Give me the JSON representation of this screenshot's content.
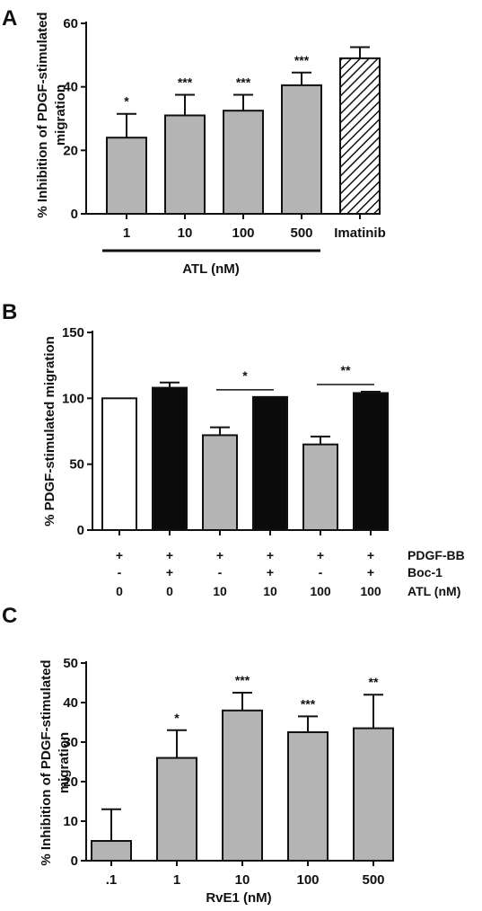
{
  "chart_data": [
    {
      "panel": "A",
      "type": "bar",
      "ylabel": "% Inhibition of PDGF-stimulated migration",
      "ylim": [
        0,
        60
      ],
      "yticks": [
        "0",
        "20",
        "40",
        "60"
      ],
      "categories": [
        "1",
        "10",
        "100",
        "500",
        "Imatinib"
      ],
      "values": [
        24,
        31,
        32.5,
        40.5,
        49
      ],
      "errors": [
        7.5,
        6.5,
        5,
        4,
        3.5
      ],
      "fills": [
        "gray",
        "gray",
        "gray",
        "gray",
        "hatch"
      ],
      "significance": [
        "*",
        "***",
        "***",
        "***",
        ""
      ],
      "group_label": "ATL (nM)",
      "colors": {
        "gray": "#b4b4b4",
        "black": "#0b0b0b",
        "white": "#ffffff"
      }
    },
    {
      "panel": "B",
      "type": "bar",
      "ylabel": "% PDGF-stimulated migration",
      "ylim": [
        0,
        150
      ],
      "yticks": [
        "0",
        "50",
        "100",
        "150"
      ],
      "values": [
        100,
        108,
        72,
        101,
        65,
        104
      ],
      "errors": [
        0,
        4,
        6,
        0,
        6,
        1
      ],
      "fills": [
        "white",
        "black",
        "gray",
        "black",
        "gray",
        "black"
      ],
      "brackets": [
        {
          "from": 2,
          "to": 3,
          "label": "*"
        },
        {
          "from": 4,
          "to": 5,
          "label": "**"
        }
      ],
      "condition_rows": [
        {
          "label": "PDGF-BB",
          "values": [
            "+",
            "+",
            "+",
            "+",
            "+",
            "+"
          ]
        },
        {
          "label": "Boc-1",
          "values": [
            "-",
            "+",
            "-",
            "+",
            "-",
            "+"
          ]
        },
        {
          "label": "ATL (nM)",
          "values": [
            "0",
            "0",
            "10",
            "10",
            "100",
            "100"
          ]
        }
      ]
    },
    {
      "panel": "C",
      "type": "bar",
      "ylabel": "% Inhibition of PDGF-stimulated migration",
      "xlabel": "RvE1 (nM)",
      "ylim": [
        0,
        50
      ],
      "yticks": [
        "0",
        "10",
        "20",
        "30",
        "40",
        "50"
      ],
      "categories": [
        ".1",
        "1",
        "10",
        "100",
        "500"
      ],
      "values": [
        5,
        26,
        38,
        32.5,
        33.5
      ],
      "errors": [
        8,
        7,
        4.5,
        4,
        8.5
      ],
      "fills": [
        "gray",
        "gray",
        "gray",
        "gray",
        "gray"
      ],
      "significance": [
        "",
        "*",
        "***",
        "***",
        "**"
      ]
    }
  ]
}
